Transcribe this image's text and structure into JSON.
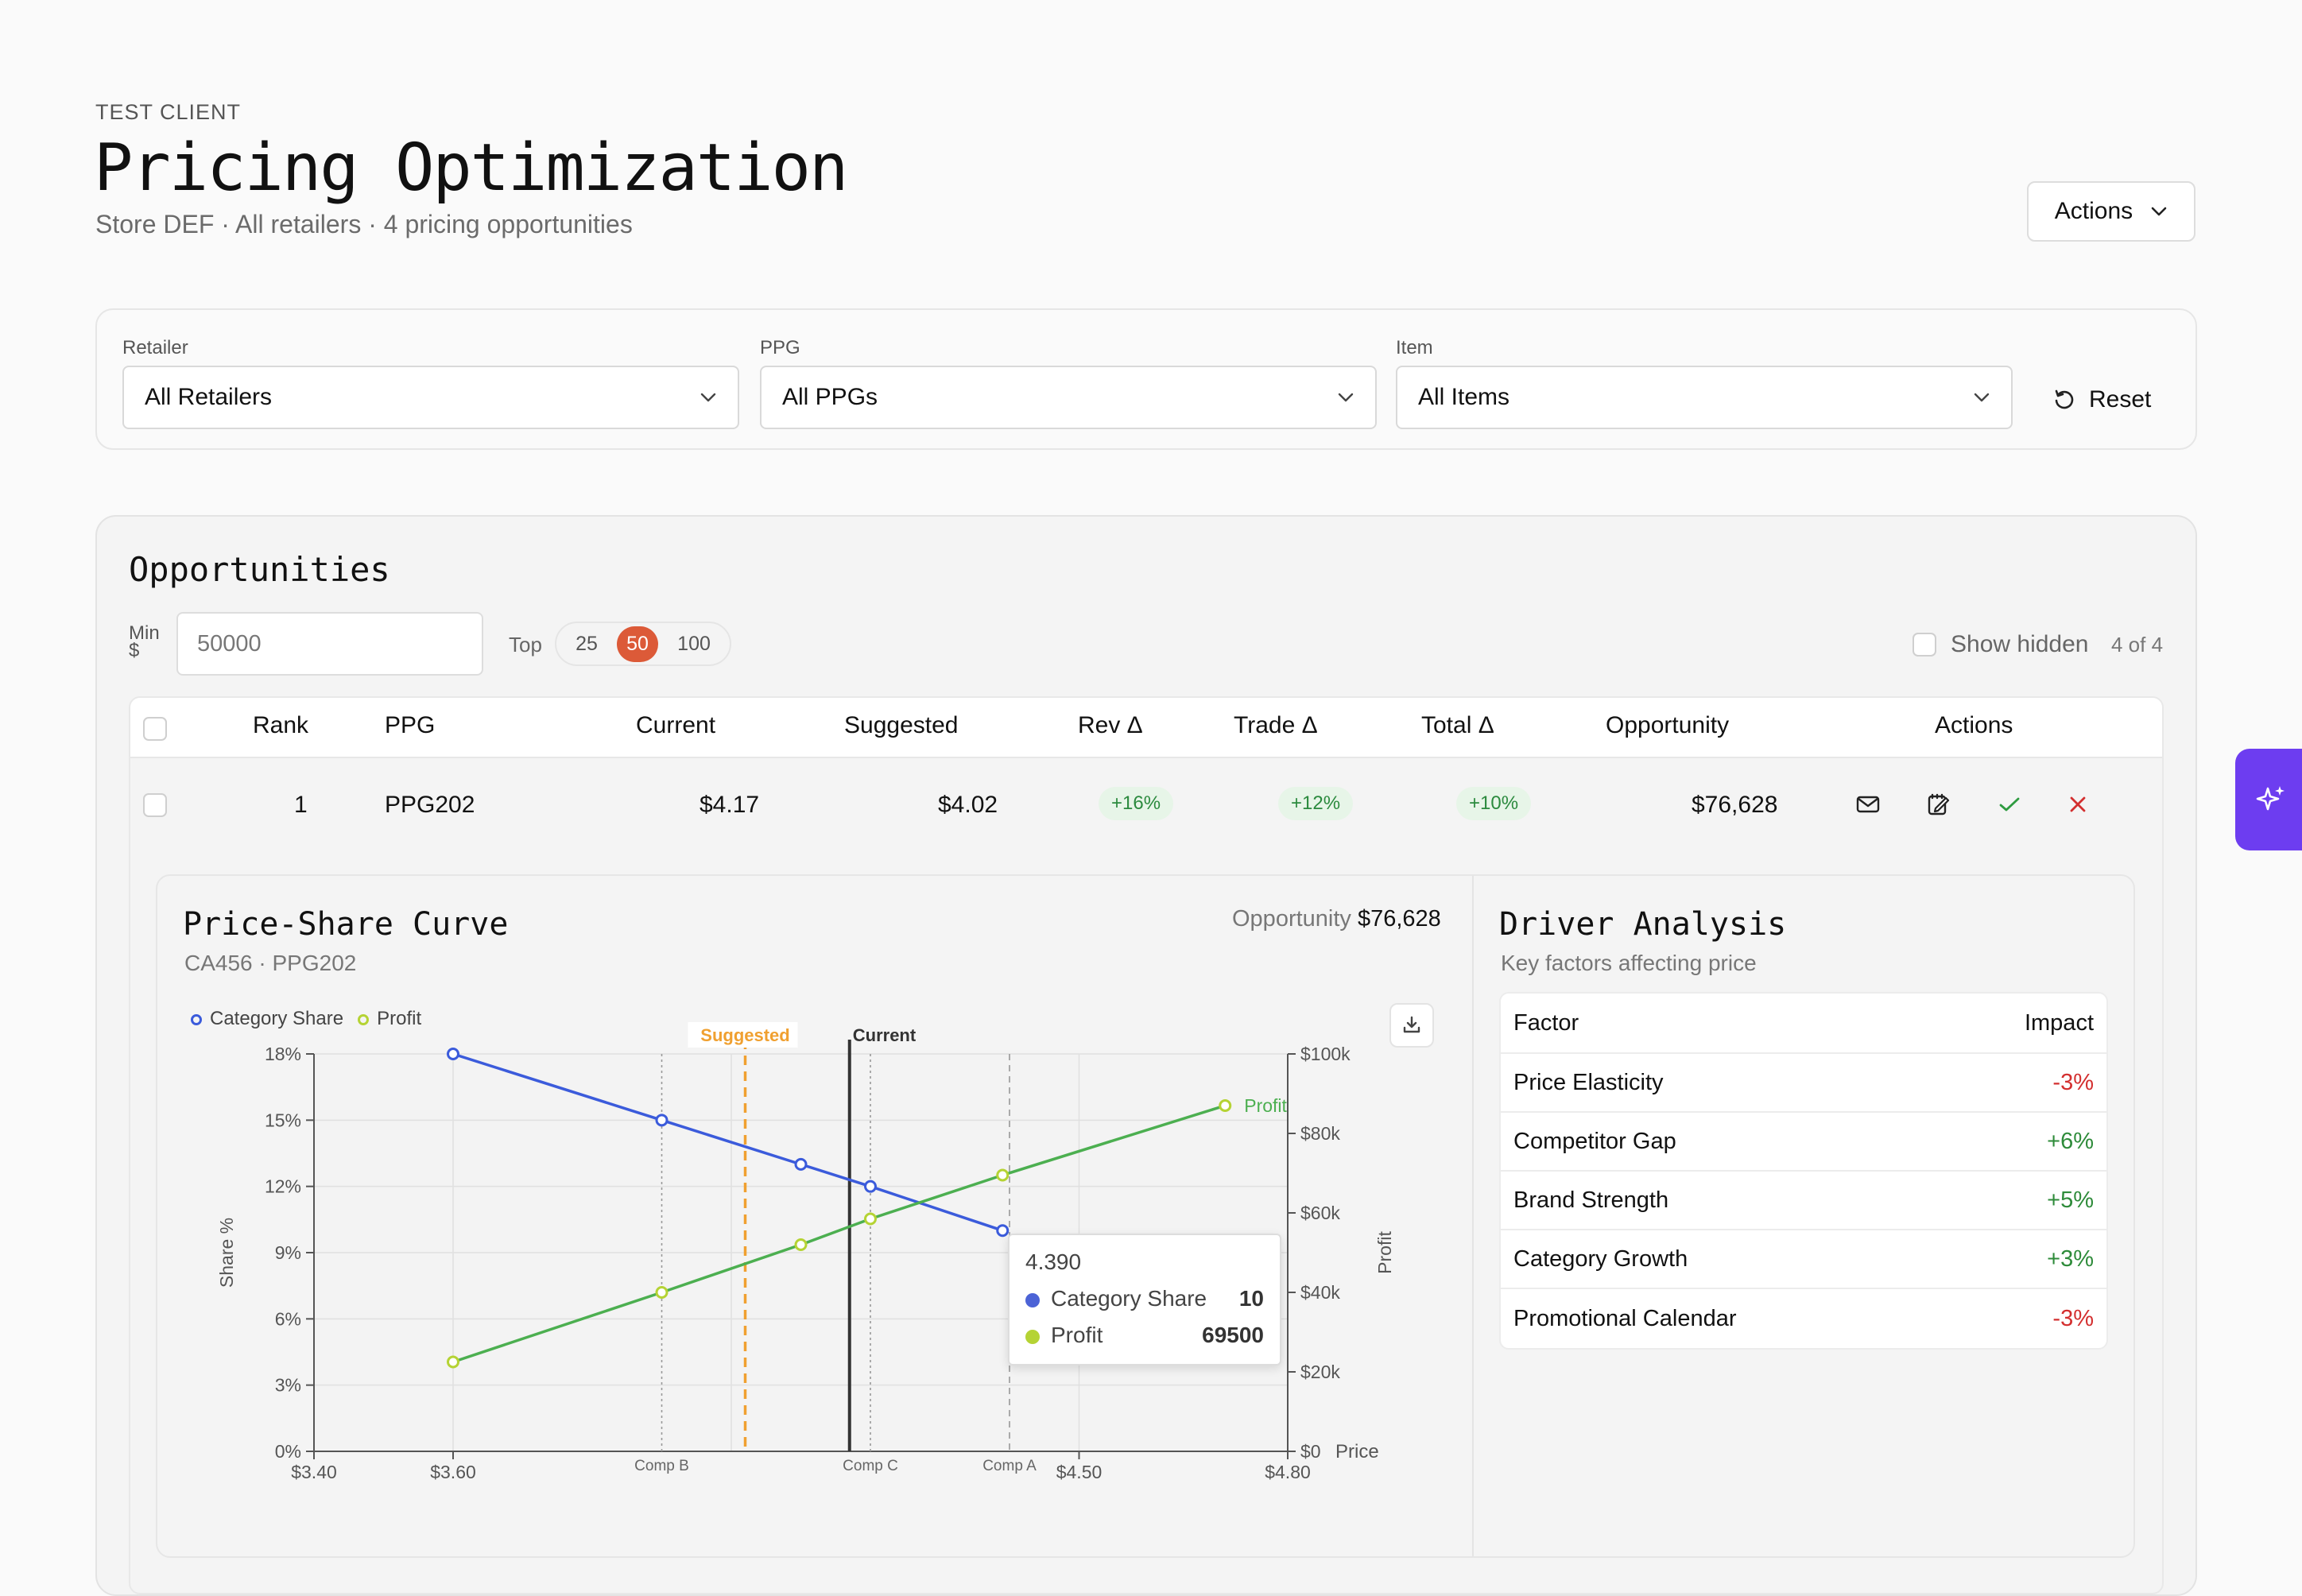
{
  "header": {
    "client": "TEST CLIENT",
    "title": "Pricing Optimization",
    "subtitle": "Store DEF · All retailers · 4 pricing opportunities",
    "actions_label": "Actions"
  },
  "filters": {
    "retailer_label": "Retailer",
    "retailer_value": "All Retailers",
    "ppg_label": "PPG",
    "ppg_value": "All PPGs",
    "item_label": "Item",
    "item_value": "All Items",
    "reset_label": "Reset"
  },
  "opportunities": {
    "title": "Opportunities",
    "min_label": "Min $",
    "min_value": "50000",
    "top_label": "Top",
    "top_options": [
      "25",
      "50",
      "100"
    ],
    "top_selected": "50",
    "show_hidden_label": "Show hidden",
    "count": "4 of 4",
    "columns": [
      "Rank",
      "PPG",
      "Current",
      "Suggested",
      "Rev Δ",
      "Trade Δ",
      "Total Δ",
      "Opportunity",
      "Actions"
    ],
    "rows": [
      {
        "rank": "1",
        "ppg": "PPG202",
        "current": "$4.17",
        "suggested": "$4.02",
        "rev": "+16%",
        "trade": "+12%",
        "total": "+10%",
        "opportunity": "$76,628"
      }
    ]
  },
  "detail": {
    "chart_title": "Price-Share Curve",
    "chart_subtitle": "CA456 · PPG202",
    "opportunity_label": "Opportunity",
    "opportunity_value": "$76,628",
    "tooltip": {
      "x": "4.390",
      "share_label": "Category Share",
      "share_value": "10",
      "profit_label": "Profit",
      "profit_value": "69500"
    },
    "driver_title": "Driver Analysis",
    "driver_subtitle": "Key factors affecting price",
    "driver_header": {
      "factor": "Factor",
      "impact": "Impact"
    },
    "drivers": [
      {
        "factor": "Price Elasticity",
        "impact": "-3%"
      },
      {
        "factor": "Competitor Gap",
        "impact": "+6%"
      },
      {
        "factor": "Brand Strength",
        "impact": "+5%"
      },
      {
        "factor": "Category Growth",
        "impact": "+3%"
      },
      {
        "factor": "Promotional Calendar",
        "impact": "-3%"
      }
    ]
  },
  "colors": {
    "accent": "#dc5a38",
    "share": "#3b5bdb",
    "profit": "#4caf50",
    "profit_marker": "#b5d334",
    "suggested": "#f0a030",
    "current": "#333333",
    "ai": "#6d3df0"
  },
  "chart_data": {
    "type": "line",
    "title": "",
    "xlabel": "Price",
    "ylabel": "Share %",
    "y2label": "Profit",
    "xlim": [
      3.4,
      4.8
    ],
    "ylim": [
      0,
      18
    ],
    "y2lim": [
      0,
      100000
    ],
    "x_ticks": [
      "$3.40",
      "$3.60",
      "$4.50",
      "$4.80"
    ],
    "y_ticks": [
      "0%",
      "3%",
      "6%",
      "9%",
      "12%",
      "15%",
      "18%"
    ],
    "y2_ticks": [
      "$0",
      "$20k",
      "$40k",
      "$60k",
      "$80k",
      "$100k"
    ],
    "legend": [
      "Category Share",
      "Profit"
    ],
    "legend_position": "top-left",
    "series": [
      {
        "name": "Category Share",
        "axis": "left",
        "x": [
          3.6,
          3.9,
          4.1,
          4.2,
          4.39
        ],
        "values": [
          18,
          15,
          13,
          12,
          10
        ]
      },
      {
        "name": "Profit",
        "axis": "right",
        "x": [
          3.6,
          3.9,
          4.1,
          4.2,
          4.39,
          4.71
        ],
        "values": [
          22500,
          40000,
          52000,
          58500,
          69500,
          87000
        ]
      }
    ],
    "reference_lines": [
      {
        "label": "Comp B",
        "x": 3.9,
        "style": "dotted"
      },
      {
        "label": "Comp C",
        "x": 4.2,
        "style": "dotted"
      },
      {
        "label": "Comp A",
        "x": 4.4,
        "style": "dashed"
      },
      {
        "label": "Suggested",
        "x": 4.02,
        "style": "dashed-orange"
      },
      {
        "label": "Current",
        "x": 4.17,
        "style": "solid-dark"
      }
    ],
    "end_label": "Profit",
    "series_label_partial": "ory Share"
  }
}
